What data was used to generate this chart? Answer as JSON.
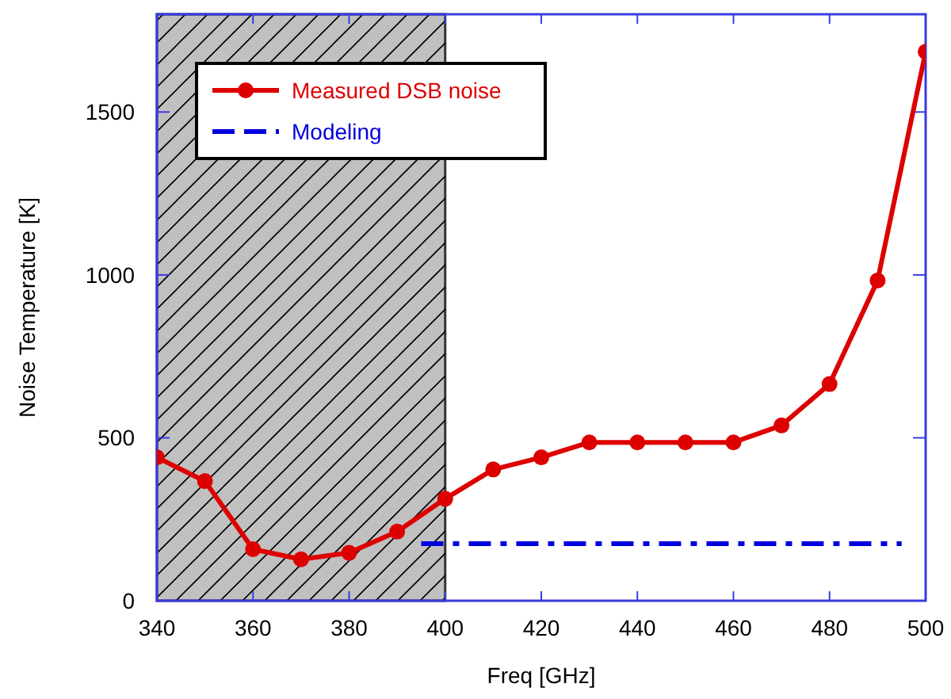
{
  "chart_data": {
    "type": "line",
    "xlabel": "Freq [GHz]",
    "ylabel": "Noise Temperature [K]",
    "xlim": [
      340,
      500
    ],
    "xticks": [
      340,
      360,
      380,
      400,
      420,
      440,
      460,
      480,
      500
    ],
    "ylim": [
      0,
      1800
    ],
    "yticks": [
      0,
      500,
      1000,
      1500
    ],
    "grid": false,
    "legend": "top left",
    "series": [
      {
        "name": "Measured DSB noise",
        "color": "#dd0000",
        "marker": "circle",
        "line_style": "solid",
        "x": [
          340,
          350,
          360,
          370,
          380,
          390,
          400,
          410,
          420,
          430,
          440,
          450,
          460,
          470,
          480,
          490,
          500
        ],
        "values": [
          440,
          367,
          158,
          127,
          147,
          212,
          313,
          403,
          440,
          486,
          486,
          486,
          486,
          538,
          665,
          983,
          1685
        ]
      },
      {
        "name": "Modeling",
        "color": "#0000dd",
        "marker": "none",
        "line_style": "dashed",
        "x": [
          395,
          495
        ],
        "values": [
          175,
          175
        ]
      }
    ],
    "bands": [
      {
        "axis": "x",
        "from": 340,
        "to": 400,
        "color": "#c0c0c0"
      }
    ]
  }
}
